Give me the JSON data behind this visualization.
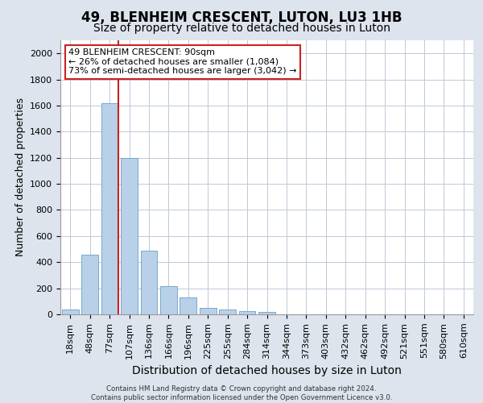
{
  "title": "49, BLENHEIM CRESCENT, LUTON, LU3 1HB",
  "subtitle": "Size of property relative to detached houses in Luton",
  "xlabel": "Distribution of detached houses by size in Luton",
  "ylabel": "Number of detached properties",
  "footer_line1": "Contains HM Land Registry data © Crown copyright and database right 2024.",
  "footer_line2": "Contains public sector information licensed under the Open Government Licence v3.0.",
  "categories": [
    "18sqm",
    "48sqm",
    "77sqm",
    "107sqm",
    "136sqm",
    "166sqm",
    "196sqm",
    "225sqm",
    "255sqm",
    "284sqm",
    "314sqm",
    "344sqm",
    "373sqm",
    "403sqm",
    "432sqm",
    "462sqm",
    "492sqm",
    "521sqm",
    "551sqm",
    "580sqm",
    "610sqm"
  ],
  "values": [
    40,
    460,
    1620,
    1200,
    490,
    215,
    130,
    50,
    40,
    25,
    20,
    0,
    0,
    0,
    0,
    0,
    0,
    0,
    0,
    0,
    0
  ],
  "bar_color": "#b8d0e8",
  "bar_edge_color": "#6a9fc8",
  "annotation_line1": "49 BLENHEIM CRESCENT: 90sqm",
  "annotation_line2": "← 26% of detached houses are smaller (1,084)",
  "annotation_line3": "73% of semi-detached houses are larger (3,042) →",
  "vline_color": "#cc2222",
  "annotation_box_edge": "#cc2222",
  "ylim": [
    0,
    2100
  ],
  "yticks": [
    0,
    200,
    400,
    600,
    800,
    1000,
    1200,
    1400,
    1600,
    1800,
    2000
  ],
  "bg_color": "#dde4ee",
  "plot_bg_color": "#ffffff",
  "title_fontsize": 12,
  "subtitle_fontsize": 10,
  "ylabel_fontsize": 9,
  "xlabel_fontsize": 10,
  "tick_fontsize": 8,
  "annot_fontsize": 8
}
